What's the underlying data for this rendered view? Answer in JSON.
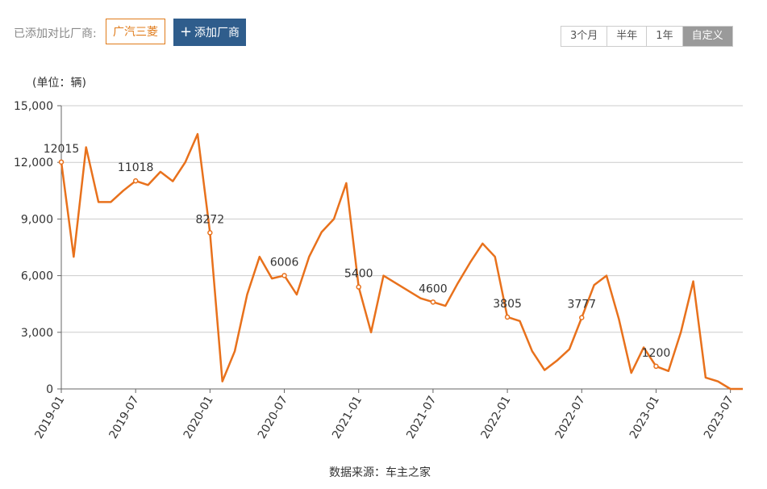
{
  "header": {
    "label": "已添加对比厂商:",
    "tag": "广汽三菱",
    "button": "添加厂商",
    "tabs": [
      "3个月",
      "半年",
      "1年",
      "自定义"
    ],
    "selected_tab": "自定义"
  },
  "chart_data": {
    "type": "line",
    "unit_label": "(单位：辆)",
    "source": "数据来源：车主之家",
    "categories": [
      "2019-01",
      null,
      null,
      null,
      null,
      null,
      "2019-07",
      null,
      null,
      null,
      null,
      null,
      "2020-01",
      null,
      null,
      null,
      null,
      null,
      "2020-07",
      null,
      null,
      null,
      null,
      null,
      "2021-01",
      null,
      null,
      null,
      null,
      null,
      "2021-07",
      null,
      null,
      null,
      null,
      null,
      "2022-01",
      null,
      null,
      null,
      null,
      null,
      "2022-07",
      null,
      null,
      null,
      null,
      null,
      "2023-01",
      null,
      null,
      null,
      null,
      null,
      "2023-07",
      null
    ],
    "series": [
      {
        "name": "广汽三菱",
        "color": "#e8711c",
        "values": [
          12015,
          7000,
          12800,
          9900,
          9900,
          10500,
          11018,
          10800,
          11500,
          11000,
          12000,
          13500,
          8272,
          400,
          2000,
          5000,
          7000,
          5850,
          6006,
          5000,
          7000,
          8300,
          9000,
          10900,
          5400,
          3000,
          6000,
          5600,
          5200,
          4800,
          4600,
          4400,
          5600,
          6700,
          7700,
          7000,
          3805,
          3600,
          2000,
          1000,
          1500,
          2100,
          3777,
          5500,
          6000,
          3700,
          850,
          2200,
          1200,
          950,
          3000,
          5700,
          600,
          400,
          0,
          0
        ],
        "value_labels": [
          "12015",
          null,
          null,
          null,
          null,
          null,
          "11018",
          null,
          null,
          null,
          null,
          null,
          "8272",
          null,
          null,
          null,
          null,
          null,
          "6006",
          null,
          null,
          null,
          null,
          null,
          "5400",
          null,
          null,
          null,
          null,
          null,
          "4600",
          null,
          null,
          null,
          null,
          null,
          "3805",
          null,
          null,
          null,
          null,
          null,
          "3777",
          null,
          null,
          null,
          null,
          null,
          "1200",
          null,
          null,
          null,
          null,
          null,
          null,
          null
        ]
      }
    ],
    "ylim": [
      0,
      15000
    ],
    "yticks": [
      0,
      {
        "value": 3000,
        "label": "3,000"
      },
      {
        "value": 6000,
        "label": "6,000"
      },
      {
        "value": 9000,
        "label": "9,000"
      },
      {
        "value": 12000,
        "label": "12,000"
      },
      {
        "value": 15000,
        "label": "15,000"
      }
    ],
    "grid": true
  }
}
